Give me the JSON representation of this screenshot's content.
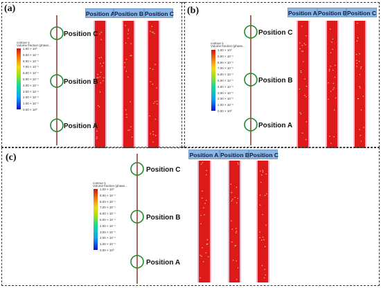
{
  "panels": [
    {
      "label": "(a)"
    },
    {
      "label": "(b)"
    },
    {
      "label": "(c)"
    }
  ],
  "position_headers": [
    "Position A",
    "Position B",
    "Position C"
  ],
  "position_markers": [
    "Position C",
    "Position B",
    "Position A"
  ],
  "colorbar": {
    "title_line1": "contour-1",
    "title_line2": "Volume fraction (phase...",
    "ticks": [
      "1.00 × 10⁰",
      "9.00 × 10⁻¹",
      "8.00 × 10⁻¹",
      "7.00 × 10⁻¹",
      "6.00 × 10⁻¹",
      "5.00 × 10⁻¹",
      "4.00 × 10⁻¹",
      "3.00 × 10⁻¹",
      "2.00 × 10⁻¹",
      "1.00 × 10⁻¹",
      "0.00 × 10⁰"
    ]
  },
  "colors": {
    "strip_red": "#dd1a1a",
    "strip_edge": "#f3b7d6",
    "pipe_line": "#8b2a10",
    "marker_circle": "#1e8a2e",
    "header_bg": "#8cb7e3"
  }
}
